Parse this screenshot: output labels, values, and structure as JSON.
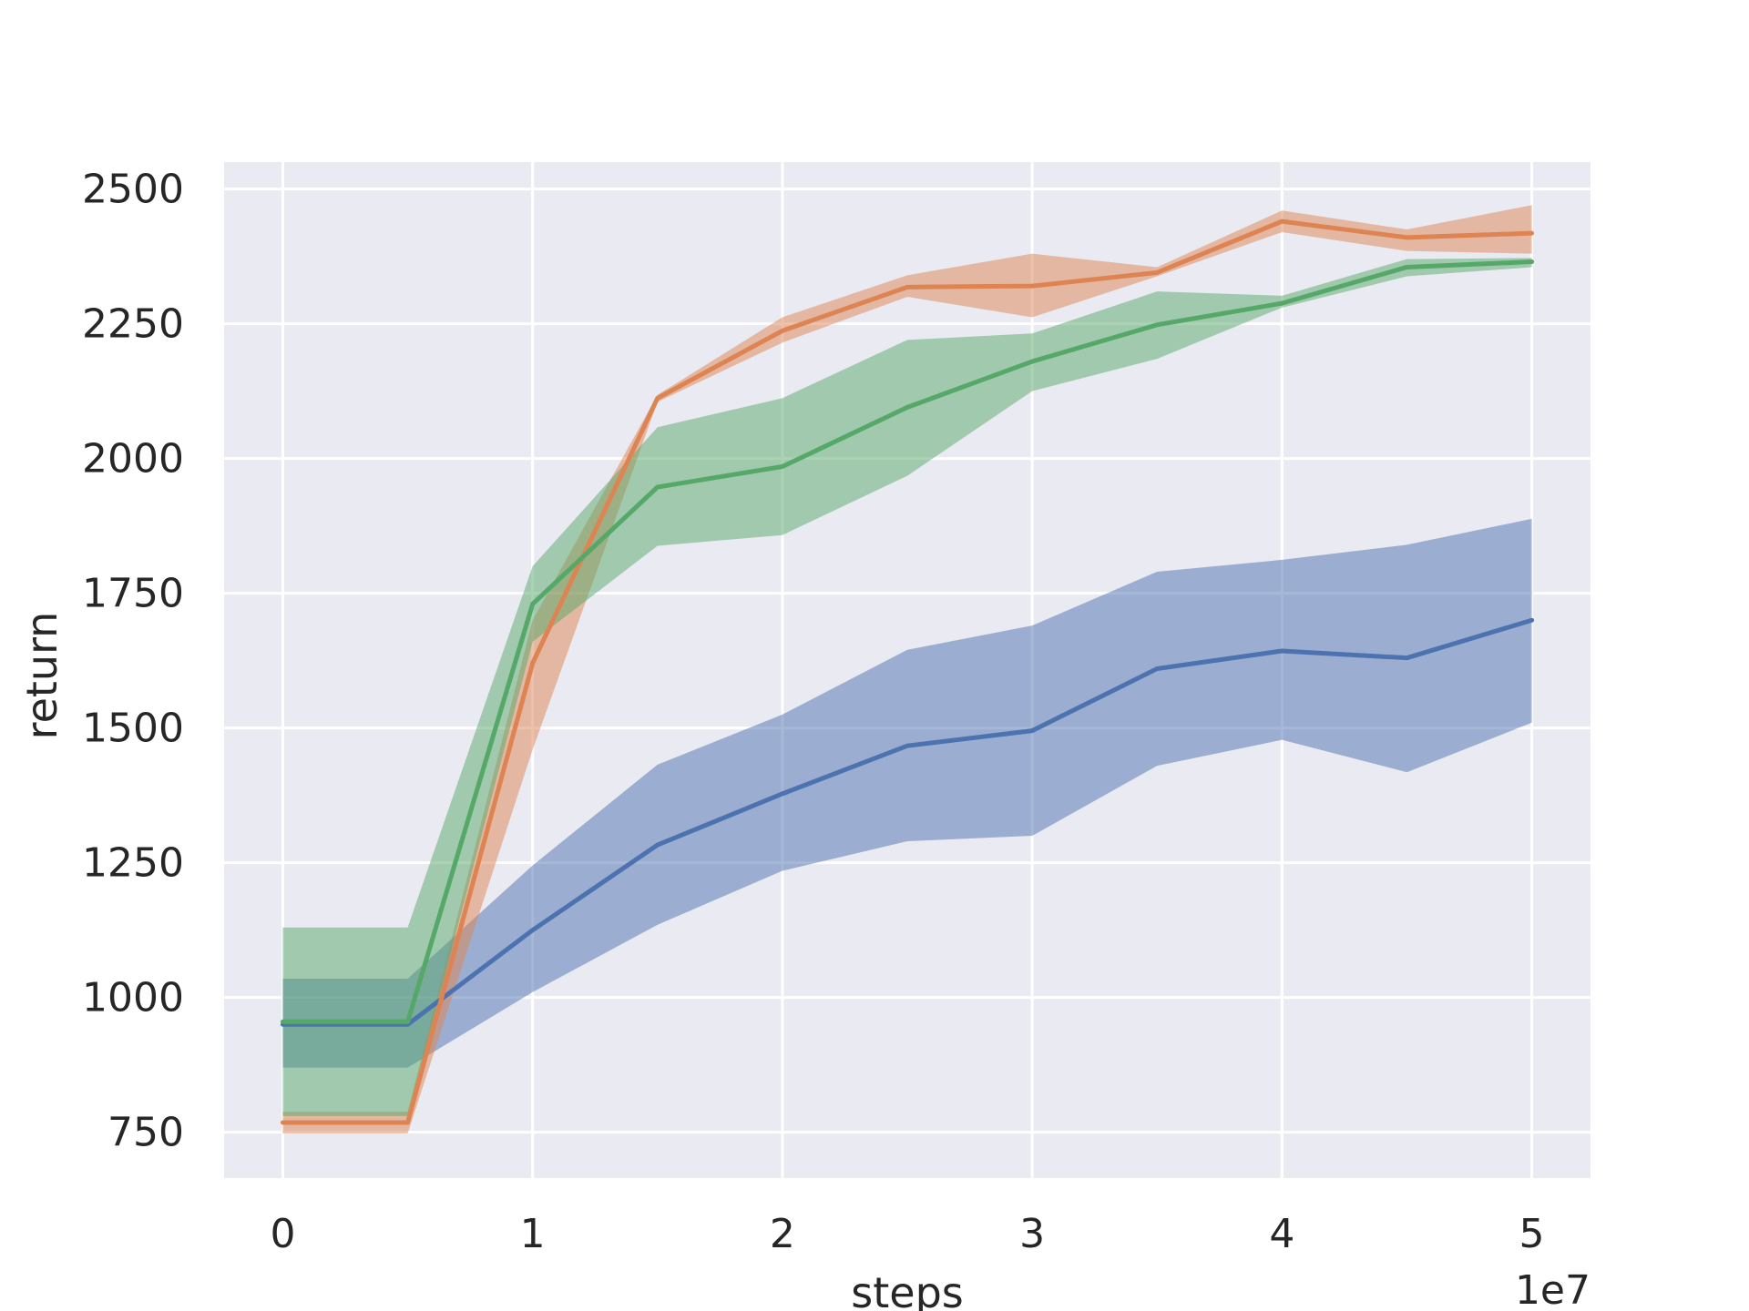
{
  "chart_data": {
    "type": "line",
    "title": "",
    "xlabel": "steps",
    "ylabel": "return",
    "x_offset_label": "1e7",
    "x": [
      0,
      5000000,
      10000000,
      15000000,
      20000000,
      25000000,
      30000000,
      35000000,
      40000000,
      45000000,
      50000000
    ],
    "xticks": [
      0,
      10000000,
      20000000,
      30000000,
      40000000,
      50000000
    ],
    "xtick_labels": [
      "0",
      "1",
      "2",
      "3",
      "4",
      "5"
    ],
    "yticks": [
      750,
      1000,
      1250,
      1500,
      1750,
      2000,
      2250,
      2500
    ],
    "xlim": [
      -2350000,
      52350000
    ],
    "ylim": [
      665,
      2550
    ],
    "grid": true,
    "background": "#eaeaf2",
    "series": [
      {
        "color": "#4c72b0",
        "values": [
          950,
          950,
          1125,
          1283,
          1378,
          1467,
          1495,
          1610,
          1643,
          1630,
          1700
        ],
        "lower": [
          870,
          870,
          1010,
          1135,
          1235,
          1290,
          1300,
          1430,
          1478,
          1418,
          1510
        ],
        "upper": [
          1035,
          1035,
          1245,
          1432,
          1525,
          1645,
          1690,
          1790,
          1812,
          1840,
          1888
        ]
      },
      {
        "color": "#dd8452",
        "values": [
          768,
          768,
          1620,
          2112,
          2237,
          2318,
          2320,
          2345,
          2440,
          2410,
          2418
        ],
        "lower": [
          748,
          748,
          1460,
          2105,
          2215,
          2300,
          2262,
          2338,
          2420,
          2385,
          2380
        ],
        "upper": [
          788,
          788,
          1700,
          2118,
          2262,
          2340,
          2380,
          2355,
          2460,
          2425,
          2470
        ]
      },
      {
        "color": "#55a868",
        "values": [
          955,
          955,
          1730,
          1947,
          1985,
          2095,
          2180,
          2248,
          2288,
          2355,
          2365
        ],
        "lower": [
          780,
          780,
          1660,
          1838,
          1858,
          1968,
          2125,
          2185,
          2280,
          2338,
          2355
        ],
        "upper": [
          1130,
          1130,
          1800,
          2058,
          2112,
          2220,
          2232,
          2310,
          2302,
          2370,
          2372
        ]
      }
    ]
  }
}
